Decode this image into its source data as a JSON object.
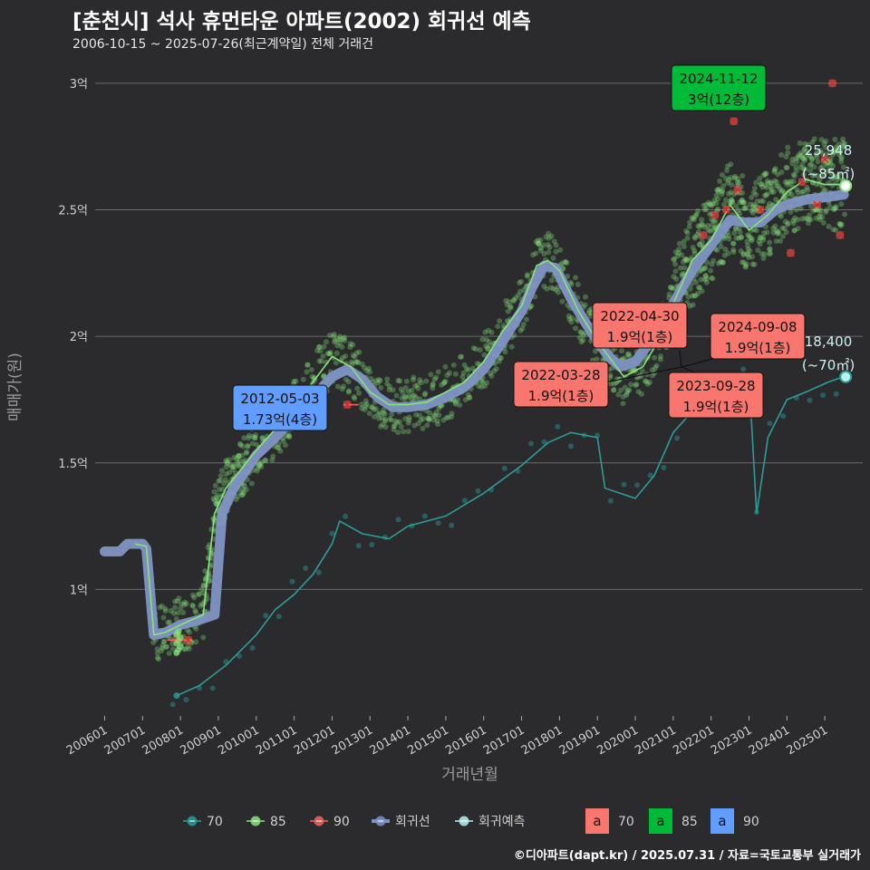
{
  "title": "[춘천시] 석사 휴먼타운 아파트(2002) 회귀선 예측",
  "subtitle": "2006-10-15 ~ 2025-07-26(최근계약일) 전체 거래건",
  "credit": "©디아파트(dapt.kr) / 2025.07.31 / 자료=국토교통부 실거래가",
  "colors": {
    "background": "#2b2b2d",
    "grid": "#6a6a6a",
    "s70": "#2a9d98",
    "s85": "#86e47a",
    "s90": "#f0655e",
    "regression": "#7f93c4",
    "forecast": "#b6f2ee",
    "ann70": "#f8766d",
    "ann85": "#00ba38",
    "ann90": "#619cff"
  },
  "chart_data": {
    "type": "scatter",
    "xlabel": "거래년월",
    "ylabel": "매매가(원)",
    "x_domain": [
      2005.75,
      2026.0
    ],
    "ylim": [
      0.5,
      3.1
    ],
    "x_ticks": [
      "200601",
      "200701",
      "200801",
      "200901",
      "201001",
      "201101",
      "201201",
      "201301",
      "201401",
      "201501",
      "201601",
      "201701",
      "201801",
      "201901",
      "202001",
      "202101",
      "202201",
      "202301",
      "202401",
      "202501"
    ],
    "y_ticks": [
      {
        "value": 1.0,
        "label": "1억"
      },
      {
        "value": 1.5,
        "label": "1.5억"
      },
      {
        "value": 2.0,
        "label": "2억"
      },
      {
        "value": 2.5,
        "label": "2.5억"
      },
      {
        "value": 3.0,
        "label": "3억"
      }
    ],
    "series": [
      {
        "name": "70",
        "key": "s70",
        "values": [
          [
            2007.9,
            0.58
          ],
          [
            2008.5,
            0.62
          ],
          [
            2009.2,
            0.7
          ],
          [
            2010.0,
            0.82
          ],
          [
            2010.5,
            0.92
          ],
          [
            2011.0,
            0.98
          ],
          [
            2011.5,
            1.06
          ],
          [
            2012.0,
            1.18
          ],
          [
            2012.2,
            1.27
          ],
          [
            2012.8,
            1.22
          ],
          [
            2013.5,
            1.2
          ],
          [
            2014.0,
            1.25
          ],
          [
            2015.0,
            1.29
          ],
          [
            2016.0,
            1.38
          ],
          [
            2017.0,
            1.49
          ],
          [
            2017.7,
            1.58
          ],
          [
            2018.3,
            1.62
          ],
          [
            2019.0,
            1.6
          ],
          [
            2019.2,
            1.4
          ],
          [
            2020.0,
            1.36
          ],
          [
            2020.5,
            1.45
          ],
          [
            2021.0,
            1.62
          ],
          [
            2021.6,
            1.72
          ],
          [
            2022.3,
            1.8
          ],
          [
            2023.0,
            1.84
          ],
          [
            2023.2,
            1.3
          ],
          [
            2023.5,
            1.6
          ],
          [
            2024.0,
            1.75
          ],
          [
            2024.5,
            1.78
          ],
          [
            2025.1,
            1.82
          ],
          [
            2025.5,
            1.84
          ]
        ]
      },
      {
        "name": "85",
        "key": "s85",
        "values": [
          [
            2006.8,
            1.18
          ],
          [
            2007.1,
            1.17
          ],
          [
            2007.3,
            0.82
          ],
          [
            2007.6,
            0.83
          ],
          [
            2008.0,
            0.86
          ],
          [
            2008.6,
            0.9
          ],
          [
            2008.9,
            1.3
          ],
          [
            2009.2,
            1.4
          ],
          [
            2010.0,
            1.55
          ],
          [
            2010.6,
            1.65
          ],
          [
            2011.0,
            1.72
          ],
          [
            2011.5,
            1.82
          ],
          [
            2012.0,
            1.92
          ],
          [
            2012.5,
            1.88
          ],
          [
            2013.0,
            1.78
          ],
          [
            2013.5,
            1.73
          ],
          [
            2014.0,
            1.73
          ],
          [
            2014.5,
            1.74
          ],
          [
            2015.0,
            1.78
          ],
          [
            2015.5,
            1.82
          ],
          [
            2016.0,
            1.9
          ],
          [
            2016.5,
            2.02
          ],
          [
            2017.0,
            2.12
          ],
          [
            2017.4,
            2.28
          ],
          [
            2017.7,
            2.3
          ],
          [
            2018.0,
            2.26
          ],
          [
            2018.5,
            2.1
          ],
          [
            2019.0,
            1.98
          ],
          [
            2019.3,
            1.92
          ],
          [
            2019.7,
            1.84
          ],
          [
            2020.2,
            1.88
          ],
          [
            2020.6,
            1.98
          ],
          [
            2021.0,
            2.13
          ],
          [
            2021.5,
            2.3
          ],
          [
            2022.0,
            2.38
          ],
          [
            2022.5,
            2.52
          ],
          [
            2023.0,
            2.42
          ],
          [
            2023.5,
            2.48
          ],
          [
            2024.0,
            2.57
          ],
          [
            2024.5,
            2.62
          ],
          [
            2025.0,
            2.6
          ],
          [
            2025.5,
            2.6
          ]
        ]
      },
      {
        "name": "90",
        "key": "s90",
        "values": [
          [
            2007.9,
            0.8
          ],
          [
            2008.2,
            0.8
          ],
          [
            2012.4,
            1.73
          ],
          [
            2021.8,
            2.4
          ],
          [
            2022.1,
            2.48
          ],
          [
            2022.4,
            2.5
          ],
          [
            2022.6,
            2.85
          ],
          [
            2022.7,
            2.58
          ],
          [
            2023.3,
            2.5
          ],
          [
            2024.1,
            2.33
          ],
          [
            2024.4,
            2.61
          ],
          [
            2024.8,
            2.52
          ],
          [
            2025.0,
            2.7
          ],
          [
            2025.2,
            3.0
          ],
          [
            2025.4,
            2.4
          ]
        ]
      },
      {
        "name": "회귀선",
        "key": "regression",
        "values": [
          [
            2006.0,
            1.15
          ],
          [
            2006.4,
            1.15
          ],
          [
            2006.6,
            1.18
          ],
          [
            2007.0,
            1.18
          ],
          [
            2007.1,
            1.16
          ],
          [
            2007.3,
            0.82
          ],
          [
            2007.6,
            0.83
          ],
          [
            2008.0,
            0.86
          ],
          [
            2008.5,
            0.88
          ],
          [
            2008.9,
            0.9
          ],
          [
            2009.1,
            1.3
          ],
          [
            2009.4,
            1.4
          ],
          [
            2010.0,
            1.53
          ],
          [
            2010.5,
            1.6
          ],
          [
            2011.0,
            1.68
          ],
          [
            2011.5,
            1.76
          ],
          [
            2012.0,
            1.84
          ],
          [
            2012.4,
            1.87
          ],
          [
            2012.8,
            1.83
          ],
          [
            2013.2,
            1.76
          ],
          [
            2013.6,
            1.72
          ],
          [
            2014.0,
            1.72
          ],
          [
            2014.5,
            1.73
          ],
          [
            2015.0,
            1.76
          ],
          [
            2015.5,
            1.8
          ],
          [
            2016.0,
            1.87
          ],
          [
            2016.5,
            1.98
          ],
          [
            2017.0,
            2.1
          ],
          [
            2017.3,
            2.2
          ],
          [
            2017.6,
            2.28
          ],
          [
            2017.9,
            2.27
          ],
          [
            2018.3,
            2.15
          ],
          [
            2018.7,
            2.05
          ],
          [
            2019.0,
            1.98
          ],
          [
            2019.3,
            1.92
          ],
          [
            2019.6,
            1.88
          ],
          [
            2020.0,
            1.9
          ],
          [
            2020.5,
            2.0
          ],
          [
            2021.0,
            2.13
          ],
          [
            2021.5,
            2.26
          ],
          [
            2022.0,
            2.36
          ],
          [
            2022.5,
            2.46
          ],
          [
            2022.9,
            2.45
          ],
          [
            2023.3,
            2.45
          ],
          [
            2023.7,
            2.5
          ],
          [
            2024.0,
            2.52
          ],
          [
            2024.5,
            2.54
          ],
          [
            2025.0,
            2.55
          ],
          [
            2025.5,
            2.56
          ]
        ]
      }
    ],
    "annotations": [
      {
        "date": "2024-11-12",
        "price": "3억(12층)",
        "type": "85",
        "x": 2024.87,
        "y": 3.0
      },
      {
        "date": "2012-05-03",
        "price": "1.73억(4층)",
        "type": "90",
        "x": 2012.34,
        "y": 1.73
      },
      {
        "date": "2022-04-30",
        "price": "1.9억(1층)",
        "type": "70",
        "x": 2022.33,
        "y": 1.9
      },
      {
        "date": "2024-09-08",
        "price": "1.9억(1층)",
        "type": "70",
        "x": 2024.69,
        "y": 1.9
      },
      {
        "date": "2022-03-28",
        "price": "1.9억(1층)",
        "type": "70",
        "x": 2022.24,
        "y": 1.9
      },
      {
        "date": "2023-09-28",
        "price": "1.9억(1층)",
        "type": "70",
        "x": 2023.74,
        "y": 1.9
      }
    ],
    "end_labels": [
      {
        "line1": "25,948",
        "line2": "(~85㎡)",
        "x": 2025.55,
        "y": 2.595
      },
      {
        "line1": "18,400",
        "line2": "(~70㎡)",
        "x": 2025.55,
        "y": 1.84
      }
    ]
  },
  "legend": {
    "lines": [
      {
        "label": "70",
        "key": "s70"
      },
      {
        "label": "85",
        "key": "s85"
      },
      {
        "label": "90",
        "key": "s90"
      },
      {
        "label": "회귀선",
        "key": "regression"
      },
      {
        "label": "회귀예측",
        "key": "forecast"
      }
    ],
    "boxes": [
      {
        "glyph": "a",
        "label": "70",
        "key": "ann70"
      },
      {
        "glyph": "a",
        "label": "85",
        "key": "ann85"
      },
      {
        "glyph": "a",
        "label": "90",
        "key": "ann90"
      }
    ]
  }
}
